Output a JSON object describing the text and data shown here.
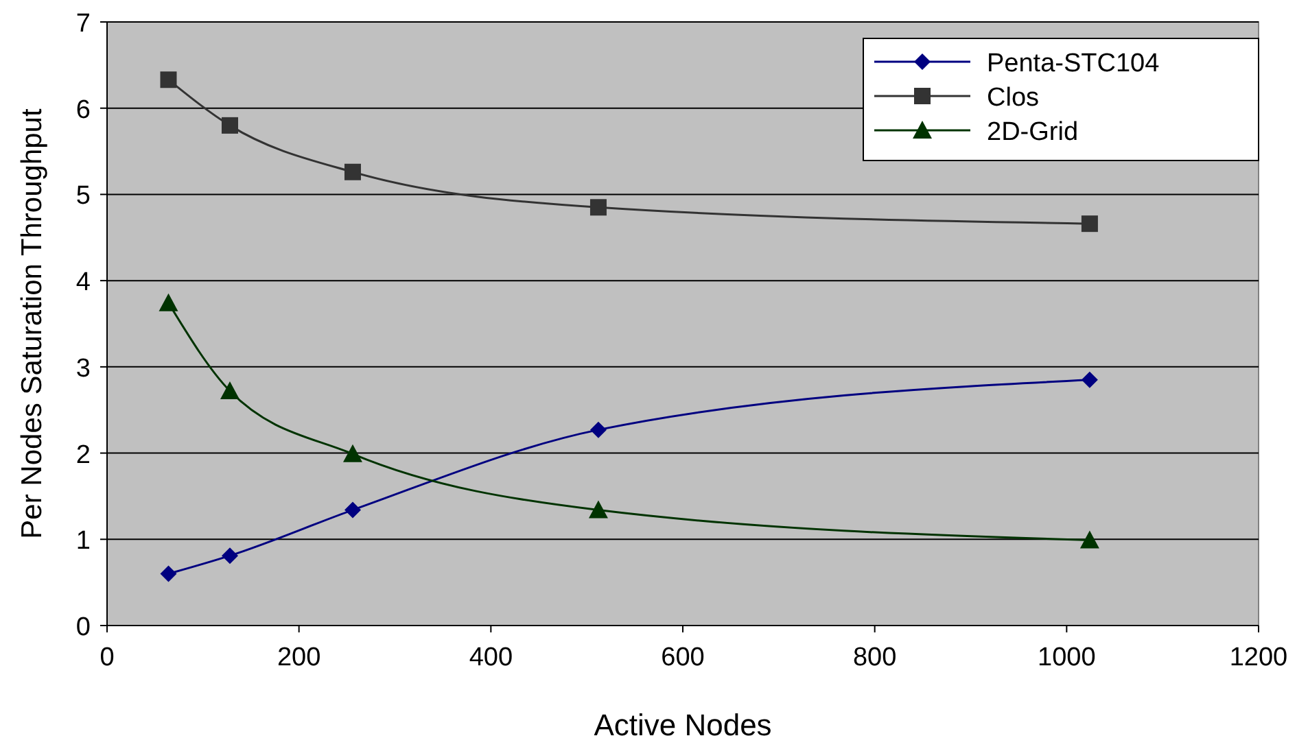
{
  "chart_data": {
    "type": "line",
    "xlabel": "Active Nodes",
    "ylabel": "Per Nodes Saturation Throughput",
    "xlim": [
      0,
      1200
    ],
    "xticks": [
      0,
      200,
      400,
      600,
      800,
      1000,
      1200
    ],
    "ylim": [
      0,
      7
    ],
    "yticks": [
      0,
      1,
      2,
      3,
      4,
      5,
      6,
      7
    ],
    "x": [
      64,
      128,
      256,
      512,
      1024
    ],
    "grid": "y",
    "legend": "top right",
    "line_style": "solid",
    "series": [
      {
        "name": "Penta-STC104",
        "color": "#000080",
        "marker": "diamond",
        "values": [
          0.6,
          0.81,
          1.34,
          2.27,
          2.85
        ]
      },
      {
        "name": "Clos",
        "color": "#333333",
        "marker": "square",
        "values": [
          6.33,
          5.8,
          5.26,
          4.85,
          4.66
        ]
      },
      {
        "name": "2D-Grid",
        "color": "#003300",
        "marker": "triangle",
        "values": [
          3.74,
          2.72,
          1.99,
          1.34,
          0.99
        ]
      }
    ]
  }
}
